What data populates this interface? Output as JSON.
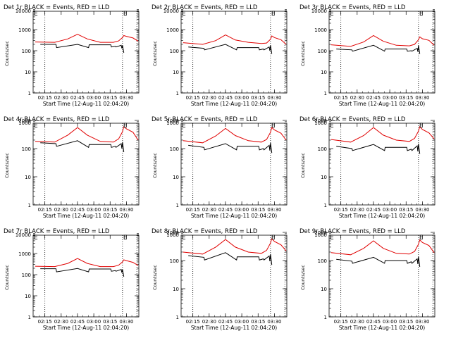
{
  "chart_data": {
    "type": "line",
    "panel_layout": "3x3 grid",
    "ylabel": "Counts/sec",
    "xlabel": "Start Time (12-Aug-11 02:04:20)",
    "xlim": [
      2.07,
      3.69
    ],
    "ylim": [
      1,
      10000
    ],
    "yscale": "log",
    "x_ticks": [
      2.25,
      2.5,
      2.75,
      3.0,
      3.25,
      3.5
    ],
    "x_tick_labels": [
      "02:15",
      "02:30",
      "02:45",
      "03:00",
      "03:15",
      "03:30"
    ],
    "y_ticks": [
      1,
      10,
      100,
      1000
    ],
    "y_tick_labels": [
      "1",
      "10",
      "100",
      "1000"
    ],
    "y_top_label": "10000",
    "vlines": [
      2.25,
      3.44,
      3.66
    ],
    "series_colors": {
      "events": "#000000",
      "lld": "#e00000"
    },
    "marker_label": "E",
    "marker_x": 3.44,
    "panels": [
      {
        "title": "Det 1r BLACK = Events, RED = LLD",
        "ylim": [
          1,
          10000
        ],
        "y_top_label": "10000",
        "lld": {
          "x": [
            2.1,
            2.4,
            2.6,
            2.75,
            2.9,
            3.1,
            3.3,
            3.38,
            3.44,
            3.46,
            3.5,
            3.6,
            3.68
          ],
          "y": [
            260,
            250,
            360,
            600,
            360,
            250,
            250,
            290,
            420,
            520,
            480,
            400,
            280
          ]
        },
        "events": {
          "x": [
            2.18,
            2.42,
            2.43,
            2.75,
            2.92,
            2.93,
            3.26,
            3.27,
            3.33,
            3.34,
            3.42,
            3.43,
            3.44,
            3.46
          ],
          "y": [
            200,
            200,
            140,
            200,
            140,
            190,
            190,
            150,
            160,
            150,
            180,
            130,
            180,
            80
          ]
        }
      },
      {
        "title": "Det 2r BLACK = Events, RED = LLD",
        "ylim": [
          1,
          10000
        ],
        "y_top_label": "10000",
        "lld": {
          "x": [
            2.1,
            2.4,
            2.6,
            2.75,
            2.9,
            3.1,
            3.3,
            3.38,
            3.44,
            3.46,
            3.5,
            3.6,
            3.68
          ],
          "y": [
            240,
            200,
            300,
            560,
            320,
            250,
            220,
            230,
            350,
            500,
            420,
            330,
            200
          ]
        },
        "events": {
          "x": [
            2.18,
            2.42,
            2.43,
            2.75,
            2.92,
            2.93,
            3.26,
            3.27,
            3.33,
            3.34,
            3.42,
            3.43,
            3.44,
            3.46
          ],
          "y": [
            150,
            130,
            110,
            200,
            110,
            140,
            140,
            110,
            120,
            110,
            150,
            100,
            180,
            70
          ]
        }
      },
      {
        "title": "Det 3r BLACK = Events, RED = LLD",
        "ylim": [
          1,
          10000
        ],
        "y_top_label": "10000",
        "lld": {
          "x": [
            2.1,
            2.4,
            2.6,
            2.75,
            2.9,
            3.1,
            3.3,
            3.38,
            3.44,
            3.46,
            3.5,
            3.6,
            3.68
          ],
          "y": [
            190,
            160,
            260,
            520,
            280,
            180,
            170,
            200,
            330,
            450,
            370,
            310,
            180
          ]
        },
        "events": {
          "x": [
            2.18,
            2.42,
            2.43,
            2.75,
            2.92,
            2.93,
            3.26,
            3.27,
            3.33,
            3.34,
            3.42,
            3.43,
            3.44,
            3.46
          ],
          "y": [
            120,
            110,
            95,
            180,
            95,
            120,
            120,
            95,
            100,
            95,
            130,
            90,
            180,
            70
          ]
        }
      },
      {
        "title": "Det 4r BLACK = Events, RED = LLD",
        "ylim": [
          1,
          1000
        ],
        "y_top_label": "1000",
        "lld": {
          "x": [
            2.1,
            2.4,
            2.6,
            2.75,
            2.9,
            3.1,
            3.3,
            3.38,
            3.44,
            3.46,
            3.5,
            3.6,
            3.68
          ],
          "y": [
            180,
            170,
            300,
            560,
            300,
            180,
            170,
            220,
            400,
            600,
            500,
            380,
            200
          ]
        },
        "events": {
          "x": [
            2.18,
            2.42,
            2.43,
            2.75,
            2.92,
            2.93,
            3.26,
            3.27,
            3.33,
            3.34,
            3.42,
            3.43,
            3.44,
            3.46
          ],
          "y": [
            160,
            150,
            120,
            190,
            110,
            140,
            140,
            110,
            120,
            110,
            150,
            100,
            170,
            75
          ]
        }
      },
      {
        "title": "Det 5r BLACK = Events, RED = LLD",
        "ylim": [
          1,
          1000
        ],
        "y_top_label": "1000",
        "lld": {
          "x": [
            2.1,
            2.4,
            2.6,
            2.75,
            2.9,
            3.1,
            3.3,
            3.38,
            3.44,
            3.46,
            3.5,
            3.6,
            3.68
          ],
          "y": [
            190,
            160,
            280,
            520,
            290,
            190,
            170,
            210,
            380,
            560,
            460,
            350,
            200
          ]
        },
        "events": {
          "x": [
            2.18,
            2.42,
            2.43,
            2.75,
            2.92,
            2.93,
            3.26,
            3.27,
            3.33,
            3.34,
            3.42,
            3.43,
            3.44,
            3.46
          ],
          "y": [
            130,
            110,
            90,
            150,
            90,
            120,
            120,
            90,
            100,
            90,
            130,
            85,
            160,
            70
          ]
        }
      },
      {
        "title": "Det 6r BLACK = Events, RED = LLD",
        "ylim": [
          1,
          1000
        ],
        "y_top_label": "1000",
        "lld": {
          "x": [
            2.1,
            2.4,
            2.6,
            2.75,
            2.9,
            3.1,
            3.3,
            3.38,
            3.44,
            3.46,
            3.5,
            3.6,
            3.68
          ],
          "y": [
            210,
            170,
            290,
            560,
            300,
            200,
            180,
            230,
            420,
            600,
            480,
            360,
            220
          ]
        },
        "events": {
          "x": [
            2.18,
            2.42,
            2.43,
            2.75,
            2.92,
            2.93,
            3.26,
            3.27,
            3.33,
            3.34,
            3.42,
            3.43,
            3.44,
            3.46
          ],
          "y": [
            120,
            100,
            85,
            140,
            85,
            110,
            110,
            85,
            95,
            85,
            125,
            80,
            150,
            65
          ]
        }
      },
      {
        "title": "Det 7r BLACK = Events, RED = LLD",
        "ylim": [
          1,
          10000
        ],
        "y_top_label": "10000",
        "lld": {
          "x": [
            2.1,
            2.4,
            2.6,
            2.75,
            2.9,
            3.1,
            3.3,
            3.38,
            3.44,
            3.46,
            3.5,
            3.6,
            3.68
          ],
          "y": [
            250,
            240,
            340,
            580,
            340,
            240,
            240,
            280,
            400,
            500,
            460,
            380,
            270
          ]
        },
        "events": {
          "x": [
            2.18,
            2.42,
            2.43,
            2.75,
            2.92,
            2.93,
            3.26,
            3.27,
            3.33,
            3.34,
            3.42,
            3.43,
            3.44,
            3.46
          ],
          "y": [
            190,
            190,
            135,
            195,
            135,
            185,
            185,
            145,
            155,
            145,
            175,
            125,
            175,
            80
          ]
        }
      },
      {
        "title": "Det 8r BLACK = Events, RED = LLD",
        "ylim": [
          1,
          1000
        ],
        "y_top_label": "1000",
        "lld": {
          "x": [
            2.1,
            2.4,
            2.6,
            2.75,
            2.9,
            3.1,
            3.3,
            3.38,
            3.44,
            3.46,
            3.5,
            3.6,
            3.68
          ],
          "y": [
            200,
            170,
            300,
            560,
            300,
            200,
            180,
            230,
            420,
            600,
            480,
            360,
            220
          ]
        },
        "events": {
          "x": [
            2.18,
            2.42,
            2.43,
            2.75,
            2.92,
            2.93,
            3.26,
            3.27,
            3.33,
            3.34,
            3.42,
            3.43,
            3.44,
            3.46
          ],
          "y": [
            150,
            130,
            105,
            190,
            105,
            135,
            135,
            105,
            115,
            105,
            145,
            95,
            170,
            70
          ]
        }
      },
      {
        "title": "Det 9r BLACK = Events, RED = LLD",
        "ylim": [
          1,
          1000
        ],
        "y_top_label": "1000",
        "lld": {
          "x": [
            2.1,
            2.4,
            2.6,
            2.75,
            2.9,
            3.1,
            3.3,
            3.38,
            3.44,
            3.46,
            3.5,
            3.6,
            3.68
          ],
          "y": [
            190,
            160,
            270,
            500,
            270,
            180,
            170,
            210,
            380,
            540,
            440,
            340,
            190
          ]
        },
        "events": {
          "x": [
            2.18,
            2.42,
            2.43,
            2.75,
            2.92,
            2.93,
            3.26,
            3.27,
            3.33,
            3.34,
            3.42,
            3.43,
            3.44,
            3.46
          ],
          "y": [
            110,
            95,
            80,
            130,
            80,
            100,
            100,
            80,
            90,
            80,
            115,
            75,
            140,
            60
          ]
        }
      }
    ]
  }
}
